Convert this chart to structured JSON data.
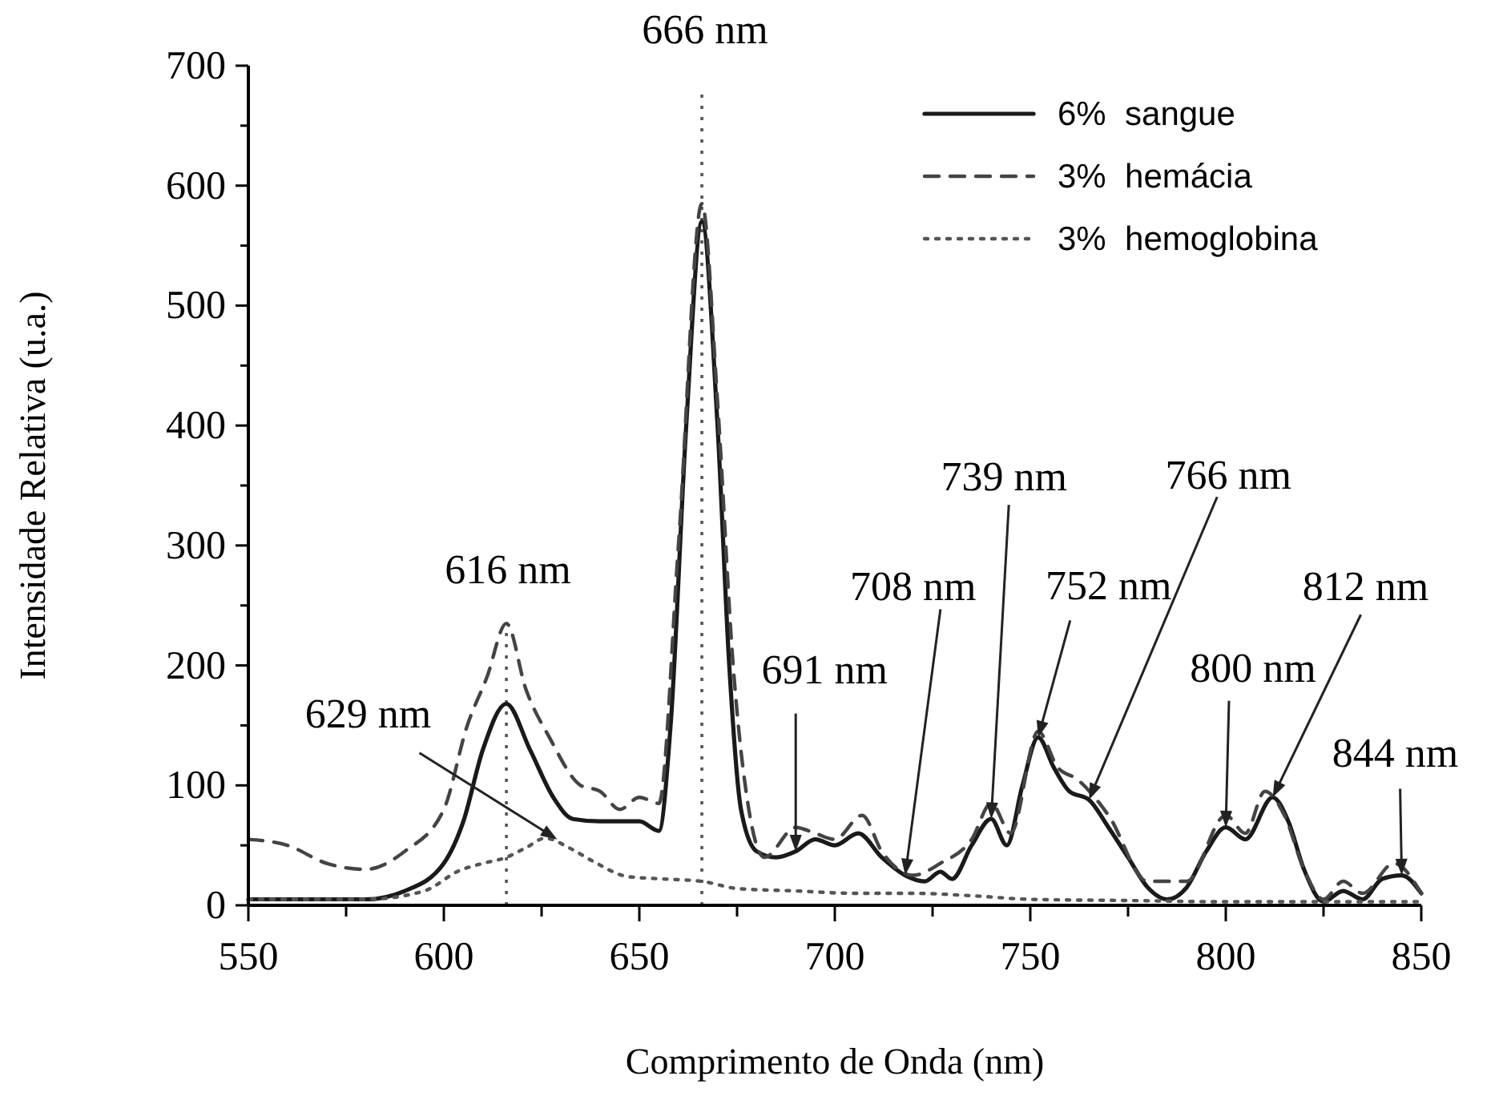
{
  "chart_data": {
    "type": "line",
    "xlabel": "Comprimento de Onda (nm)",
    "ylabel": "Intensidade Relativa (u.a.)",
    "xlim": [
      550,
      850
    ],
    "ylim": [
      0,
      700
    ],
    "xticks": [
      550,
      {
        "value": 575,
        "label": null
      },
      600,
      {
        "value": 625,
        "label": null
      },
      650,
      {
        "value": 675,
        "label": null
      },
      700,
      {
        "value": 725,
        "label": null
      },
      750,
      {
        "value": 775,
        "label": null
      },
      800,
      {
        "value": 825,
        "label": null
      },
      850
    ],
    "yticks": [
      0,
      {
        "value": 50,
        "label": null
      },
      100,
      {
        "value": 150,
        "label": null
      },
      200,
      {
        "value": 250,
        "label": null
      },
      300,
      {
        "value": 350,
        "label": null
      },
      400,
      {
        "value": 450,
        "label": null
      },
      500,
      {
        "value": 550,
        "label": null
      },
      600,
      {
        "value": 650,
        "label": null
      },
      700
    ],
    "grid": false,
    "legend": "top right",
    "series": [
      {
        "name": "6%  sangue",
        "color": "#1a1a1a",
        "line_style": "solid",
        "x": [
          550,
          570,
          580,
          590,
          600,
          605,
          610,
          616,
          622,
          628,
          633,
          640,
          650,
          655,
          658,
          662,
          666,
          670,
          673,
          676,
          680,
          685,
          690,
          695,
          700,
          706,
          712,
          718,
          723,
          727,
          730,
          735,
          740,
          744,
          748,
          752,
          756,
          760,
          765,
          770,
          775,
          780,
          785,
          790,
          795,
          800,
          805,
          812,
          816,
          820,
          825,
          830,
          835,
          840,
          845,
          850
        ],
        "values": [
          5,
          5,
          5,
          12,
          35,
          70,
          130,
          168,
          130,
          90,
          72,
          70,
          70,
          62,
          150,
          400,
          570,
          400,
          200,
          80,
          45,
          40,
          45,
          55,
          50,
          60,
          40,
          25,
          20,
          28,
          22,
          50,
          72,
          50,
          100,
          140,
          115,
          95,
          88,
          65,
          40,
          15,
          5,
          15,
          45,
          65,
          55,
          90,
          70,
          30,
          3,
          12,
          5,
          22,
          25,
          10
        ]
      },
      {
        "name": "3%  hemácia",
        "color": "#444444",
        "line_style": "dashed",
        "x": [
          550,
          560,
          570,
          580,
          590,
          600,
          606,
          611,
          616,
          621,
          627,
          635,
          640,
          645,
          650,
          655,
          660,
          666,
          670,
          674,
          678,
          682,
          690,
          695,
          700,
          707,
          712,
          720,
          727,
          735,
          740,
          745,
          752,
          757,
          762,
          770,
          780,
          790,
          800,
          805,
          810,
          815,
          820,
          825,
          830,
          835,
          843,
          850
        ],
        "values": [
          55,
          50,
          35,
          30,
          45,
          80,
          150,
          190,
          235,
          180,
          140,
          100,
          95,
          80,
          90,
          85,
          300,
          585,
          420,
          200,
          80,
          40,
          65,
          60,
          55,
          75,
          45,
          25,
          35,
          55,
          85,
          60,
          145,
          115,
          105,
          75,
          20,
          20,
          75,
          60,
          95,
          75,
          30,
          5,
          20,
          10,
          35,
          10
        ]
      },
      {
        "name": "3%  hemoglobina",
        "color": "#555555",
        "line_style": "dotted",
        "x": [
          550,
          580,
          595,
          604,
          610,
          616,
          621,
          626,
          632,
          638,
          647,
          656,
          666,
          675,
          690,
          705,
          720,
          735,
          750,
          775,
          800,
          825,
          850
        ],
        "values": [
          5,
          5,
          12,
          29,
          35,
          40,
          48,
          56,
          48,
          37,
          24,
          22,
          20,
          14,
          12,
          10,
          10,
          8,
          5,
          4,
          3,
          3,
          3
        ]
      }
    ],
    "ref_lines": [
      {
        "axis": "x",
        "value": 616,
        "line_style": "dotted",
        "color": "#555555"
      },
      {
        "axis": "x",
        "value": 666,
        "line_style": "dotted",
        "color": "#555555"
      }
    ],
    "annotations": [
      {
        "text": "666 nm",
        "x": 666,
        "y": 680
      },
      {
        "text": "616 nm",
        "x": 616,
        "y": 235
      },
      {
        "text": "629 nm",
        "x": 629,
        "y": 55
      },
      {
        "text": "691 nm",
        "x": 690,
        "y": 45
      },
      {
        "text": "708 nm",
        "x": 718,
        "y": 25
      },
      {
        "text": "739 nm",
        "x": 740,
        "y": 72
      },
      {
        "text": "752 nm",
        "x": 752,
        "y": 140
      },
      {
        "text": "766 nm",
        "x": 765,
        "y": 88
      },
      {
        "text": "800 nm",
        "x": 800,
        "y": 65
      },
      {
        "text": "812 nm",
        "x": 812,
        "y": 90
      },
      {
        "text": "844 nm",
        "x": 845,
        "y": 25
      }
    ]
  }
}
